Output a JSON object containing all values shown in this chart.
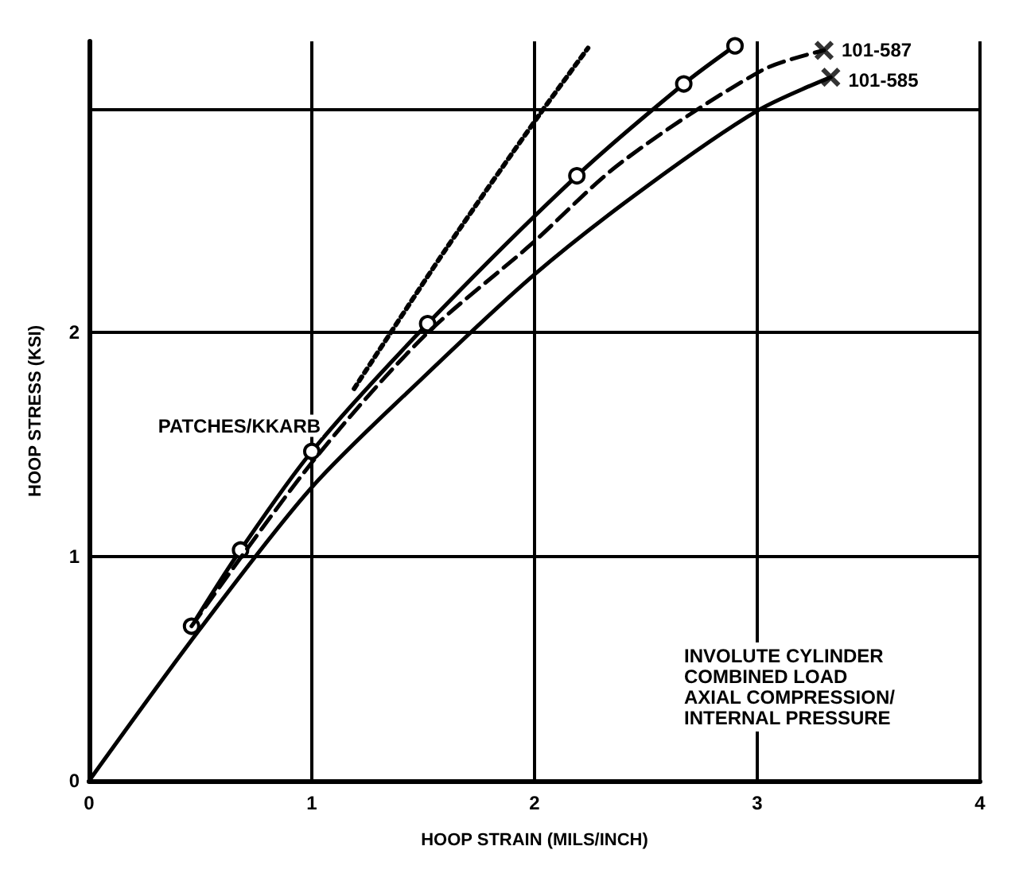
{
  "chart_data": {
    "type": "line",
    "xlabel": "HOOP STRAIN (MILS/INCH)",
    "ylabel": "HOOP STRESS (KSI)",
    "xlim": [
      0,
      4
    ],
    "ylim": [
      0,
      3.3
    ],
    "xticks": [
      0,
      1,
      2,
      3,
      4
    ],
    "yticks": [
      0,
      1,
      2,
      {
        "value": 3,
        "label": null
      }
    ],
    "grid": true,
    "legend": false,
    "annotations": [
      "INVOLUTE CYLINDER\nCOMBINED LOAD\nAXIAL COMPRESSION/\nINTERNAL PRESSURE"
    ],
    "series": [
      {
        "name": "PATCHES/KKARB",
        "color": "#000000",
        "marker": "circle",
        "line_style": "solid",
        "x": [
          0.46,
          0.68,
          1.0,
          1.52,
          2.19,
          2.67,
          2.9
        ],
        "values": [
          0.69,
          1.03,
          1.47,
          2.04,
          2.7,
          3.11,
          3.28
        ]
      },
      {
        "name": "101-587",
        "color": "#000000",
        "marker": "none",
        "line_style": "dashed",
        "x": [
          0.46,
          1.0,
          1.5,
          1.98,
          2.39,
          3.02,
          3.3
        ],
        "values": [
          0.69,
          1.42,
          1.98,
          2.39,
          2.76,
          3.17,
          3.26
        ]
      },
      {
        "name": "101-585",
        "color": "#000000",
        "marker": "none",
        "line_style": "solid",
        "x": [
          0,
          0.5,
          1.0,
          1.5,
          2.0,
          2.5,
          3.0,
          3.33
        ],
        "values": [
          0,
          0.68,
          1.31,
          1.8,
          2.26,
          2.65,
          2.99,
          3.14
        ]
      },
      {
        "color": "#000000",
        "marker": "none",
        "line_style": "dotted",
        "x": [
          1.19,
          1.6,
          2.02,
          2.24
        ],
        "values": [
          1.75,
          2.37,
          2.97,
          3.27
        ]
      },
      {
        "type": "scatter",
        "color": "#000000",
        "marker": "cross",
        "x": [
          3.3,
          3.33
        ],
        "values": [
          3.26,
          3.14
        ]
      }
    ]
  }
}
